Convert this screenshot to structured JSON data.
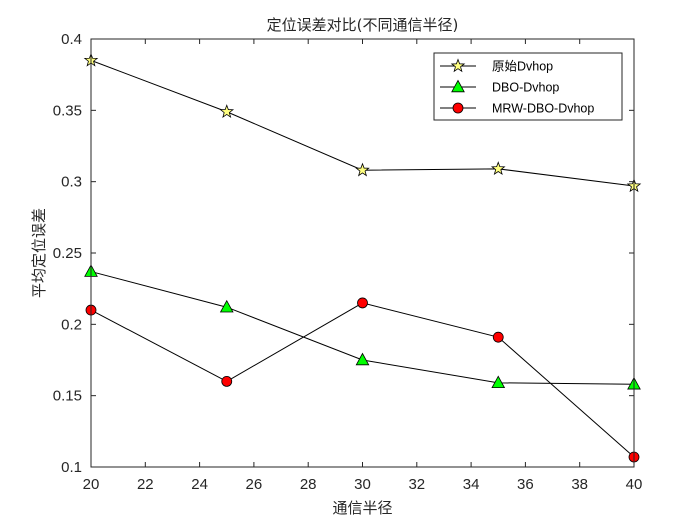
{
  "chart_data": {
    "type": "line",
    "title": "定位误差对比(不同通信半径)",
    "xlabel": "通信半径",
    "ylabel": "平均定位误差",
    "xlim": [
      20,
      40
    ],
    "ylim": [
      0.1,
      0.4
    ],
    "xticks": [
      20,
      22,
      24,
      26,
      28,
      30,
      32,
      34,
      36,
      38,
      40
    ],
    "yticks": [
      0.1,
      0.15,
      0.2,
      0.25,
      0.3,
      0.35,
      0.4
    ],
    "xtick_labels": [
      "20",
      "22",
      "24",
      "26",
      "28",
      "30",
      "32",
      "34",
      "36",
      "38",
      "40"
    ],
    "ytick_labels": [
      "0.1",
      "0.15",
      "0.2",
      "0.25",
      "0.3",
      "0.35",
      "0.4"
    ],
    "grid": false,
    "legend_position": "top-right",
    "x": [
      20,
      25,
      30,
      35,
      40
    ],
    "series": [
      {
        "name": "原始Dvhop",
        "marker": "star",
        "color": "#ffff80",
        "values": [
          0.385,
          0.349,
          0.308,
          0.309,
          0.297
        ]
      },
      {
        "name": "DBO-Dvhop",
        "marker": "triangle",
        "color": "#00ff00",
        "values": [
          0.237,
          0.212,
          0.175,
          0.159,
          0.158
        ]
      },
      {
        "name": "MRW-DBO-Dvhop",
        "marker": "circle",
        "color": "#ff0000",
        "values": [
          0.21,
          0.16,
          0.215,
          0.191,
          0.107
        ]
      }
    ]
  }
}
